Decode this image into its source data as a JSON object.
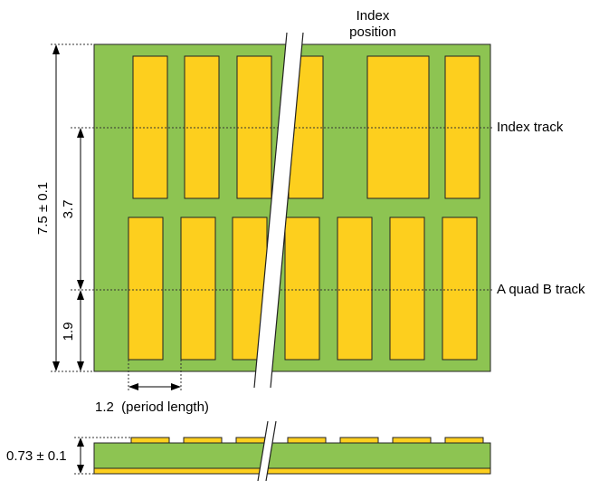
{
  "labels": {
    "index_position_line1": "Index",
    "index_position_line2": "position",
    "index_track": "Index track",
    "aquadb_track": "A quad B track",
    "height_total": "7.5 ± 0.1",
    "height_upper": "3.7",
    "height_lower": "1.9",
    "period_length": "1.2  (period length)",
    "thickness": "0.73 ± 0.1"
  },
  "colors": {
    "substrate": "#8dc452",
    "pad": "#fdcf1e",
    "outline": "#222222",
    "dotted_line": "#333333"
  }
}
